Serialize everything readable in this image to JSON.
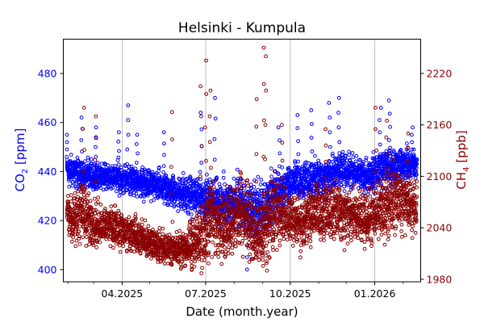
{
  "chart_data": {
    "type": "scatter",
    "title": "Helsinki - Kumpula",
    "xlabel": "Date (month.year)",
    "ylabel_left": {
      "main": "CO",
      "sub": "2",
      "unit": " [ppm]"
    },
    "ylabel_right": {
      "main": "CH",
      "sub": "4",
      "unit": " [ppb]"
    },
    "x_ticks": [
      "04.2025",
      "07.2025",
      "10.2025",
      "01.2026"
    ],
    "x_tick_days": [
      64,
      155,
      247,
      339
    ],
    "x_minor_tick_days": [
      5,
      33,
      64,
      94,
      125,
      155,
      186,
      217,
      247,
      278,
      308,
      339,
      370
    ],
    "xlim_days": [
      0,
      389
    ],
    "x_origin_date": "27.01.2025",
    "left_ticks": [
      400,
      420,
      440,
      460,
      480
    ],
    "left_ylim": [
      395,
      494
    ],
    "right_ticks": [
      1980,
      2040,
      2100,
      2160,
      2220
    ],
    "right_ylim": [
      1977,
      2260
    ],
    "grid": "x-major",
    "colors": {
      "co2": "#0000ff",
      "ch4": "#8b0000",
      "grid": "#b0b0b0"
    },
    "series": [
      {
        "name": "CO2",
        "axis": "left",
        "color": "#0000ff",
        "profile_days": [
          4,
          10,
          20,
          30,
          40,
          50,
          60,
          70,
          80,
          90,
          100,
          110,
          120,
          130,
          140,
          150,
          160,
          170,
          180,
          190,
          200,
          210,
          220,
          230,
          240,
          250,
          260,
          270,
          280,
          290,
          300,
          310,
          320,
          330,
          340,
          350,
          360,
          370,
          380,
          385
        ],
        "profile_center": [
          440,
          440,
          439,
          438,
          438,
          438,
          437,
          437,
          436,
          435,
          434,
          433,
          432,
          431,
          430,
          430,
          428,
          428,
          426,
          427,
          425,
          424,
          426,
          430,
          433,
          436,
          437,
          437,
          438,
          438,
          440,
          440,
          439,
          438,
          440,
          442,
          442,
          443,
          443,
          442
        ],
        "profile_spread": [
          6,
          6,
          6,
          6,
          6,
          6,
          7,
          6,
          6,
          6,
          7,
          7,
          7,
          8,
          8,
          8,
          9,
          10,
          10,
          11,
          11,
          12,
          11,
          10,
          9,
          8,
          8,
          8,
          8,
          8,
          7,
          7,
          7,
          7,
          8,
          8,
          7,
          7,
          7,
          6
        ],
        "outliers": [
          [
            4,
            455
          ],
          [
            20,
            462
          ],
          [
            35,
            458
          ],
          [
            60,
            456
          ],
          [
            70,
            467
          ],
          [
            80,
            455
          ],
          [
            110,
            456
          ],
          [
            150,
            464
          ],
          [
            165,
            470
          ],
          [
            175,
            440
          ],
          [
            200,
            400
          ],
          [
            235,
            458
          ],
          [
            255,
            463
          ],
          [
            270,
            465
          ],
          [
            290,
            468
          ],
          [
            300,
            470
          ],
          [
            345,
            466
          ],
          [
            355,
            469
          ],
          [
            380,
            458
          ]
        ]
      },
      {
        "name": "CH4",
        "axis": "right",
        "color": "#8b0000",
        "profile_days": [
          4,
          10,
          20,
          30,
          40,
          50,
          60,
          70,
          80,
          90,
          100,
          110,
          120,
          130,
          140,
          150,
          160,
          170,
          180,
          190,
          200,
          210,
          220,
          230,
          240,
          250,
          260,
          270,
          280,
          290,
          300,
          310,
          320,
          330,
          340,
          350,
          360,
          370,
          380,
          385
        ],
        "profile_center": [
          2060,
          2050,
          2060,
          2045,
          2040,
          2045,
          2040,
          2035,
          2030,
          2025,
          2020,
          2015,
          2015,
          2015,
          2020,
          2030,
          2050,
          2045,
          2040,
          2060,
          2050,
          2030,
          2040,
          2060,
          2055,
          2050,
          2045,
          2055,
          2060,
          2060,
          2060,
          2055,
          2050,
          2050,
          2055,
          2065,
          2075,
          2070,
          2065,
          2070
        ],
        "profile_spread": [
          25,
          30,
          35,
          30,
          25,
          25,
          25,
          25,
          22,
          20,
          20,
          20,
          20,
          22,
          30,
          40,
          45,
          40,
          40,
          50,
          45,
          40,
          40,
          40,
          35,
          35,
          35,
          35,
          35,
          35,
          35,
          35,
          30,
          30,
          35,
          40,
          40,
          35,
          30,
          30
        ],
        "outliers": [
          [
            22,
            2180
          ],
          [
            35,
            2170
          ],
          [
            118,
            2175
          ],
          [
            150,
            2205
          ],
          [
            155,
            2235
          ],
          [
            160,
            2200
          ],
          [
            210,
            2190
          ],
          [
            218,
            2250
          ],
          [
            220,
            2240
          ],
          [
            222,
            1990
          ],
          [
            238,
            2160
          ],
          [
            285,
            2155
          ],
          [
            340,
            2180
          ],
          [
            352,
            2165
          ],
          [
            375,
            2150
          ]
        ]
      }
    ]
  }
}
